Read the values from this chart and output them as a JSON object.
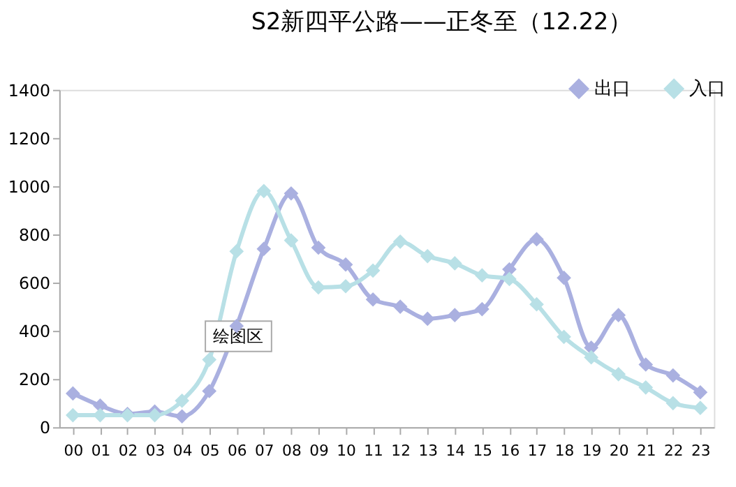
{
  "chart_data": {
    "type": "line",
    "title": "S2新四平公路——正冬至（12.22）",
    "categories": [
      "00",
      "01",
      "02",
      "03",
      "04",
      "05",
      "06",
      "07",
      "08",
      "09",
      "10",
      "11",
      "12",
      "13",
      "14",
      "15",
      "16",
      "17",
      "18",
      "19",
      "20",
      "21",
      "22",
      "23"
    ],
    "series": [
      {
        "name": "出口",
        "color": "#aab0e0",
        "values": [
          140,
          90,
          55,
          65,
          45,
          150,
          420,
          740,
          970,
          745,
          675,
          530,
          500,
          450,
          465,
          490,
          655,
          780,
          620,
          330,
          465,
          260,
          215,
          145
        ]
      },
      {
        "name": "入口",
        "color": "#b8e0e6",
        "values": [
          50,
          50,
          50,
          50,
          110,
          280,
          730,
          980,
          775,
          580,
          585,
          650,
          770,
          710,
          680,
          630,
          615,
          510,
          375,
          290,
          220,
          165,
          100,
          80
        ]
      }
    ],
    "ylim": [
      0,
      1400
    ],
    "yticks": [
      0,
      200,
      400,
      600,
      800,
      1000,
      1200,
      1400
    ],
    "grid": false,
    "legend": "top right",
    "marker": "diamond",
    "line_style": "solid",
    "annotations": [
      "绘图区"
    ]
  }
}
